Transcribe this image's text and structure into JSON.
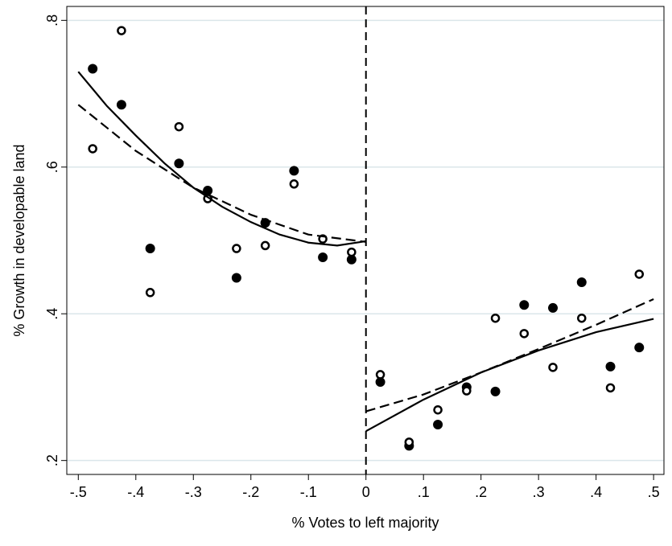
{
  "chart_data": {
    "type": "scatter",
    "xlabel": "% Votes to left majority",
    "ylabel": "% Growth in developable land",
    "xlim": [
      -0.52,
      0.518
    ],
    "ylim": [
      0.181,
      0.819
    ],
    "xticks": [
      {
        "value": -0.5,
        "label": "-.5"
      },
      {
        "value": -0.4,
        "label": "-.4"
      },
      {
        "value": -0.3,
        "label": "-.3"
      },
      {
        "value": -0.2,
        "label": "-.2"
      },
      {
        "value": -0.1,
        "label": "-.1"
      },
      0,
      {
        "value": 0.1,
        "label": ".1"
      },
      {
        "value": 0.2,
        "label": ".2"
      },
      {
        "value": 0.3,
        "label": ".3"
      },
      {
        "value": 0.4,
        "label": ".4"
      },
      {
        "value": 0.5,
        "label": ".5"
      }
    ],
    "yticks": [
      {
        "value": 0.2,
        "label": ".2"
      },
      {
        "value": 0.4,
        "label": ".4"
      },
      {
        "value": 0.6,
        "label": ".6"
      },
      {
        "value": 0.8,
        "label": ".8"
      }
    ],
    "grid": true,
    "grid_color": "#dbe6ea",
    "vline": 0,
    "series": [
      {
        "marker": "filled",
        "color": "#000000",
        "x": [
          -0.475,
          -0.425,
          -0.375,
          -0.325,
          -0.275,
          -0.225,
          -0.175,
          -0.125,
          -0.075,
          -0.025,
          0.025,
          0.075,
          0.125,
          0.175,
          0.225,
          0.275,
          0.325,
          0.375,
          0.425,
          0.475
        ],
        "values": [
          0.734,
          0.685,
          0.489,
          0.605,
          0.568,
          0.449,
          0.524,
          0.595,
          0.477,
          0.474,
          0.307,
          0.22,
          0.249,
          0.3,
          0.294,
          0.412,
          0.408,
          0.443,
          0.328,
          0.354
        ]
      },
      {
        "marker": "hollow",
        "color": "#000000",
        "x": [
          -0.475,
          -0.425,
          -0.375,
          -0.325,
          -0.275,
          -0.225,
          -0.175,
          -0.125,
          -0.075,
          -0.025,
          0.025,
          0.075,
          0.125,
          0.175,
          0.225,
          0.275,
          0.325,
          0.375,
          0.425,
          0.475
        ],
        "values": [
          0.625,
          0.786,
          0.429,
          0.655,
          0.557,
          0.489,
          0.493,
          0.577,
          0.502,
          0.484,
          0.317,
          0.225,
          0.269,
          0.295,
          0.394,
          0.373,
          0.327,
          0.394,
          0.299,
          0.454
        ]
      },
      {
        "marker": "line",
        "style": "solid",
        "color": "#000000",
        "x": [
          -0.5,
          -0.45,
          -0.4,
          -0.35,
          -0.3,
          -0.25,
          -0.2,
          -0.15,
          -0.1,
          -0.05,
          0
        ],
        "values": [
          0.73,
          0.683,
          0.643,
          0.605,
          0.572,
          0.546,
          0.525,
          0.508,
          0.497,
          0.493,
          0.499
        ]
      },
      {
        "marker": "line",
        "style": "dashed",
        "color": "#000000",
        "x": [
          -0.5,
          -0.4,
          -0.3,
          -0.2,
          -0.1,
          0
        ],
        "values": [
          0.685,
          0.622,
          0.572,
          0.535,
          0.508,
          0.498
        ]
      },
      {
        "marker": "line",
        "style": "solid",
        "color": "#000000",
        "x": [
          0,
          0.1,
          0.2,
          0.3,
          0.4,
          0.5
        ],
        "values": [
          0.24,
          0.283,
          0.32,
          0.35,
          0.375,
          0.393
        ]
      },
      {
        "marker": "line",
        "style": "dashed",
        "color": "#000000",
        "x": [
          0,
          0.1,
          0.2,
          0.3,
          0.4,
          0.5
        ],
        "values": [
          0.267,
          0.29,
          0.32,
          0.352,
          0.385,
          0.42
        ]
      }
    ]
  }
}
